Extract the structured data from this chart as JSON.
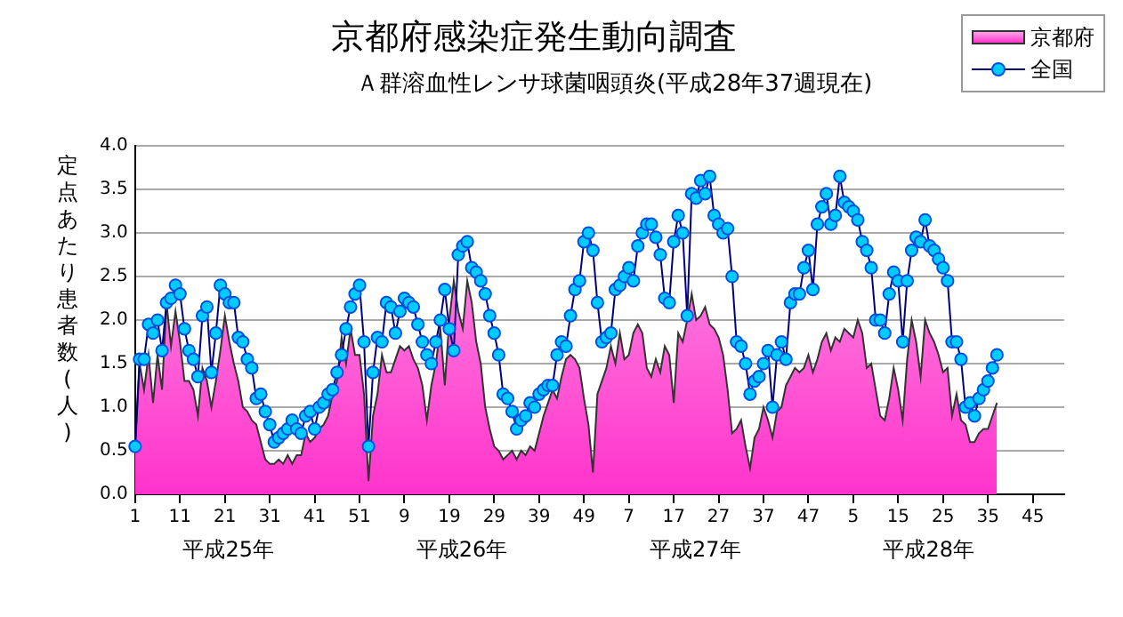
{
  "chart_data": {
    "type": "line",
    "title": "京都府感染症発生動向調査",
    "subtitle": "Ａ群溶血性レンサ球菌咽頭炎(平成28年37週現在)",
    "ylabel": "定点あたり患者数(人)",
    "categories": [
      "1",
      null,
      null,
      null,
      null,
      null,
      null,
      null,
      null,
      null,
      "11",
      null,
      null,
      null,
      null,
      null,
      null,
      null,
      null,
      null,
      "21",
      null,
      null,
      null,
      null,
      null,
      null,
      null,
      null,
      null,
      "31",
      null,
      null,
      null,
      null,
      null,
      null,
      null,
      null,
      null,
      "41",
      null,
      null,
      null,
      null,
      null,
      null,
      null,
      null,
      null,
      "51",
      null,
      null,
      null,
      null,
      null,
      null,
      null,
      null,
      null,
      "9",
      null,
      null,
      null,
      null,
      null,
      null,
      null,
      null,
      null,
      "19",
      null,
      null,
      null,
      null,
      null,
      null,
      null,
      null,
      null,
      "29",
      null,
      null,
      null,
      null,
      null,
      null,
      null,
      null,
      null,
      "39",
      null,
      null,
      null,
      null,
      null,
      null,
      null,
      null,
      null,
      "49",
      null,
      null,
      null,
      null,
      null,
      null,
      null,
      null,
      null,
      "7",
      null,
      null,
      null,
      null,
      null,
      null,
      null,
      null,
      null,
      "17",
      null,
      null,
      null,
      null,
      null,
      null,
      null,
      null,
      null,
      "27",
      null,
      null,
      null,
      null,
      null,
      null,
      null,
      null,
      null,
      "37",
      null,
      null,
      null,
      null,
      null,
      null,
      null,
      null,
      null,
      "47",
      null,
      null,
      null,
      null,
      null,
      null,
      null,
      null,
      null,
      "5",
      null,
      null,
      null,
      null,
      null,
      null,
      null,
      null,
      null,
      "15",
      null,
      null,
      null,
      null,
      null,
      null,
      null,
      null,
      null,
      "25",
      null,
      null,
      null,
      null,
      null,
      null,
      null,
      null,
      null,
      "35",
      null,
      null,
      null,
      null,
      null,
      null,
      null,
      null,
      null,
      "45",
      null,
      null,
      null,
      null,
      null,
      null,
      null
    ],
    "series": [
      {
        "name": "京都府",
        "type": "area",
        "marker": "none",
        "color": "#ff33cc",
        "values": [
          0.5,
          1.5,
          1.2,
          1.6,
          1.05,
          1.6,
          1.2,
          2.2,
          1.7,
          2.1,
          1.75,
          1.3,
          1.3,
          1.2,
          0.9,
          1.45,
          1.3,
          1.0,
          1.3,
          1.65,
          2.05,
          1.75,
          1.5,
          1.3,
          1.0,
          0.95,
          0.85,
          0.8,
          0.6,
          0.4,
          0.35,
          0.35,
          0.4,
          0.35,
          0.45,
          0.35,
          0.45,
          0.45,
          0.7,
          0.6,
          0.65,
          0.75,
          0.8,
          0.9,
          1.15,
          1.3,
          1.8,
          1.5,
          1.9,
          1.6,
          1.6,
          1.15,
          0.15,
          0.9,
          1.15,
          1.6,
          1.4,
          1.4,
          1.55,
          1.7,
          1.65,
          1.7,
          1.55,
          1.45,
          1.25,
          0.85,
          1.25,
          1.5,
          1.9,
          1.25,
          2.0,
          2.45,
          2.1,
          1.9,
          2.45,
          2.2,
          1.75,
          1.5,
          1.0,
          0.75,
          0.55,
          0.5,
          0.4,
          0.45,
          0.5,
          0.4,
          0.5,
          0.45,
          0.55,
          0.5,
          0.7,
          0.9,
          1.05,
          1.2,
          1.1,
          1.35,
          1.55,
          1.6,
          1.55,
          1.45,
          1.1,
          0.8,
          0.25,
          1.15,
          1.3,
          1.45,
          1.7,
          1.5,
          1.85,
          1.55,
          1.6,
          1.85,
          1.95,
          1.85,
          1.45,
          1.35,
          1.55,
          1.4,
          1.7,
          1.6,
          1.05,
          1.85,
          1.75,
          2.0,
          2.3,
          2.0,
          2.05,
          2.15,
          1.95,
          1.9,
          1.8,
          1.6,
          1.2,
          0.7,
          0.75,
          0.85,
          0.55,
          0.3,
          0.65,
          0.75,
          1.0,
          0.85,
          0.65,
          0.95,
          1.0,
          1.25,
          1.35,
          1.45,
          1.4,
          1.45,
          1.6,
          1.4,
          1.55,
          1.75,
          1.85,
          1.65,
          1.8,
          1.75,
          1.9,
          1.85,
          1.8,
          2.0,
          1.85,
          1.45,
          1.5,
          1.2,
          0.9,
          0.85,
          1.1,
          1.45,
          1.2,
          0.85,
          1.55,
          2.0,
          1.75,
          1.35,
          2.0,
          1.85,
          1.75,
          1.6,
          1.4,
          1.45,
          0.9,
          1.15,
          0.85,
          0.8,
          0.6,
          0.6,
          0.7,
          0.75,
          0.75,
          0.9,
          1.05,
          null,
          null,
          null,
          null,
          null,
          null,
          null,
          null,
          null,
          null,
          null,
          null,
          null,
          null,
          null
        ]
      },
      {
        "name": "全国",
        "type": "line",
        "marker": "circle",
        "color": "#00ccff",
        "values": [
          0.55,
          1.55,
          1.55,
          1.95,
          1.85,
          2.0,
          1.65,
          2.2,
          2.25,
          2.4,
          2.3,
          1.9,
          1.65,
          1.55,
          1.35,
          2.05,
          2.15,
          1.4,
          1.85,
          2.4,
          2.3,
          2.2,
          2.2,
          1.8,
          1.75,
          1.55,
          1.45,
          1.1,
          1.15,
          0.95,
          0.8,
          0.6,
          0.65,
          0.7,
          0.75,
          0.85,
          0.75,
          0.7,
          0.9,
          0.95,
          0.75,
          1.0,
          1.05,
          1.15,
          1.2,
          1.4,
          1.6,
          1.9,
          2.15,
          2.3,
          2.4,
          1.75,
          0.55,
          1.4,
          1.8,
          1.75,
          2.2,
          2.15,
          1.85,
          2.1,
          2.25,
          2.2,
          2.15,
          1.95,
          1.75,
          1.6,
          1.5,
          1.75,
          2.0,
          2.35,
          1.9,
          1.65,
          2.75,
          2.85,
          2.9,
          2.6,
          2.55,
          2.45,
          2.3,
          2.05,
          1.85,
          1.6,
          1.15,
          1.1,
          0.95,
          0.75,
          0.85,
          0.9,
          1.05,
          1.0,
          1.15,
          1.2,
          1.25,
          1.25,
          1.6,
          1.75,
          1.7,
          2.05,
          2.35,
          2.45,
          2.9,
          3.0,
          2.8,
          2.2,
          1.75,
          1.8,
          1.85,
          2.35,
          2.4,
          2.5,
          2.6,
          2.45,
          2.85,
          3.0,
          3.1,
          3.1,
          2.95,
          2.75,
          2.25,
          2.2,
          2.9,
          3.2,
          3.0,
          2.05,
          3.45,
          3.4,
          3.6,
          3.45,
          3.65,
          3.2,
          3.1,
          3.0,
          3.05,
          2.5,
          1.75,
          1.7,
          1.5,
          1.15,
          1.3,
          1.35,
          1.5,
          1.65,
          1.0,
          1.6,
          1.75,
          1.55,
          2.2,
          2.3,
          2.3,
          2.6,
          2.8,
          2.35,
          3.1,
          3.3,
          3.45,
          3.1,
          3.2,
          3.65,
          3.35,
          3.3,
          3.25,
          3.15,
          2.9,
          2.8,
          2.6,
          2.0,
          2.0,
          1.85,
          2.3,
          2.55,
          2.45,
          1.75,
          2.45,
          2.8,
          2.95,
          2.9,
          3.15,
          2.85,
          2.8,
          2.7,
          2.6,
          2.45,
          1.75,
          1.75,
          1.55,
          1.0,
          1.05,
          0.9,
          1.1,
          1.2,
          1.3,
          1.45,
          1.6,
          null,
          null,
          null,
          null,
          null,
          null,
          null,
          null,
          null,
          null,
          null,
          null,
          null,
          null,
          null
        ]
      }
    ],
    "ylim": [
      0,
      4
    ],
    "yticks": [
      {
        "value": 0,
        "label": "0.0"
      },
      {
        "value": 0.5,
        "label": "0.5"
      },
      {
        "value": 1,
        "label": "1.0"
      },
      {
        "value": 1.5,
        "label": "1.5"
      },
      {
        "value": 2,
        "label": "2.0"
      },
      {
        "value": 2.5,
        "label": "2.5"
      },
      {
        "value": 3,
        "label": "3.0"
      },
      {
        "value": 3.5,
        "label": "3.5"
      },
      {
        "value": 4,
        "label": "4.0"
      }
    ],
    "grid": "y",
    "legend": "top right",
    "annotations": [
      "平成25年",
      "平成26年",
      "平成27年",
      "平成28年"
    ]
  }
}
